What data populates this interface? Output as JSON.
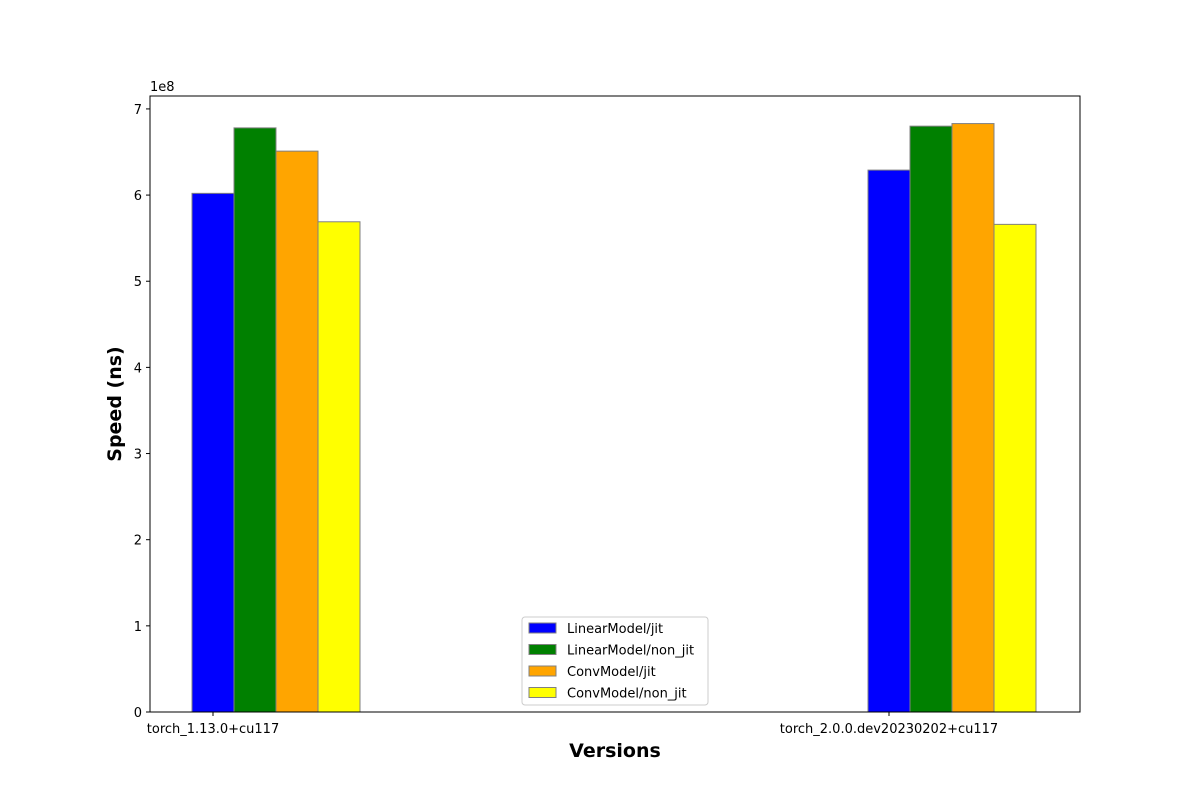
{
  "chart_data": {
    "type": "bar",
    "title": "",
    "xlabel": "Versions",
    "ylabel": "Speed (ns)",
    "y_offset_label": "1e8",
    "y_scale": 100000000,
    "ylim": [
      0,
      715000000
    ],
    "y_ticks": [
      0,
      100000000,
      200000000,
      300000000,
      400000000,
      500000000,
      600000000,
      700000000
    ],
    "y_tick_labels": [
      "0",
      "1",
      "2",
      "3",
      "4",
      "5",
      "6",
      "7"
    ],
    "categories": [
      "torch_1.13.0+cu117",
      "torch_2.0.0.dev20230202+cu117"
    ],
    "series": [
      {
        "name": "LinearModel/jit",
        "color": "#0000ff",
        "values": [
          602000000,
          629000000
        ]
      },
      {
        "name": "LinearModel/non_jit",
        "color": "#008000",
        "values": [
          678000000,
          680000000
        ]
      },
      {
        "name": "ConvModel/jit",
        "color": "#ffa500",
        "values": [
          651000000,
          683000000
        ]
      },
      {
        "name": "ConvModel/non_jit",
        "color": "#ffff00",
        "values": [
          569000000,
          566000000
        ]
      }
    ],
    "bar_edge_color": "#808080",
    "grid": false,
    "legend_position": "lower center"
  }
}
